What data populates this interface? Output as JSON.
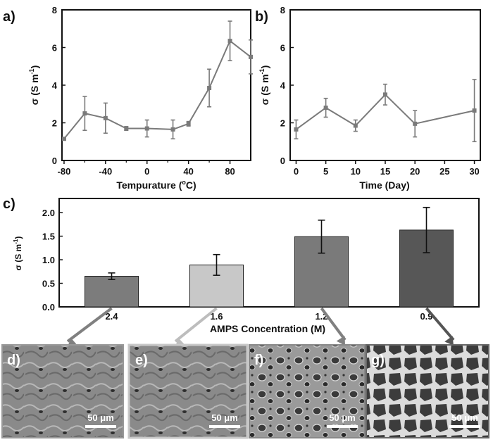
{
  "chart_data": [
    {
      "panel": "a)",
      "type": "line",
      "xlabel": "Tempurature (°C)",
      "ylabel": "σ (S m-1)",
      "xlim": [
        -82,
        100
      ],
      "ylim": [
        0,
        8
      ],
      "xticks": [
        -80,
        -40,
        0,
        40,
        80
      ],
      "xticks_minor": [
        -60,
        -20,
        20,
        60
      ],
      "yticks": [
        0,
        2,
        4,
        6,
        8
      ],
      "x": [
        -80,
        -60,
        -40,
        -20,
        0,
        25,
        40,
        60,
        80,
        100
      ],
      "y": [
        1.15,
        2.5,
        2.25,
        1.7,
        1.7,
        1.65,
        1.95,
        3.85,
        6.35,
        5.5
      ],
      "err": [
        0.05,
        0.9,
        0.8,
        0.1,
        0.45,
        0.5,
        0.12,
        1.0,
        1.05,
        0.9
      ],
      "color": "#7a7a7a"
    },
    {
      "panel": "b)",
      "type": "line",
      "xlabel": "Time (Day)",
      "ylabel": "σ (S m-1)",
      "xlim": [
        -1,
        31
      ],
      "ylim": [
        0,
        8
      ],
      "xticks": [
        0,
        5,
        10,
        15,
        20,
        25,
        30
      ],
      "yticks": [
        0,
        2,
        4,
        6,
        8
      ],
      "x": [
        0,
        5,
        10,
        15,
        20,
        30
      ],
      "y": [
        1.65,
        2.8,
        1.85,
        3.5,
        1.95,
        2.65
      ],
      "err": [
        0.5,
        0.5,
        0.3,
        0.55,
        0.7,
        1.65
      ],
      "color": "#7a7a7a"
    },
    {
      "panel": "c)",
      "type": "bar",
      "xlabel": "AMPS Concentration (M)",
      "ylabel": "σ (S m-1)",
      "ylim": [
        0,
        2.3
      ],
      "yticks": [
        0.0,
        0.5,
        1.0,
        1.5,
        2.0
      ],
      "categories": [
        "2.4",
        "1.6",
        "1.2",
        "0.9"
      ],
      "values": [
        0.65,
        0.89,
        1.49,
        1.63
      ],
      "err": [
        0.07,
        0.22,
        0.35,
        0.48
      ],
      "colors": [
        "#7c7c7c",
        "#c8c8c8",
        "#7a7a7a",
        "#575757"
      ]
    }
  ],
  "images": [
    {
      "label": "d)",
      "scale": "50 μm",
      "arrow_color": "#808080"
    },
    {
      "label": "e)",
      "scale": "50 μm",
      "arrow_color": "#bdbdbd"
    },
    {
      "label": "f)",
      "scale": "50 μm",
      "arrow_color": "#808080"
    },
    {
      "label": "g)",
      "scale": "50 μm",
      "arrow_color": "#555555"
    }
  ]
}
